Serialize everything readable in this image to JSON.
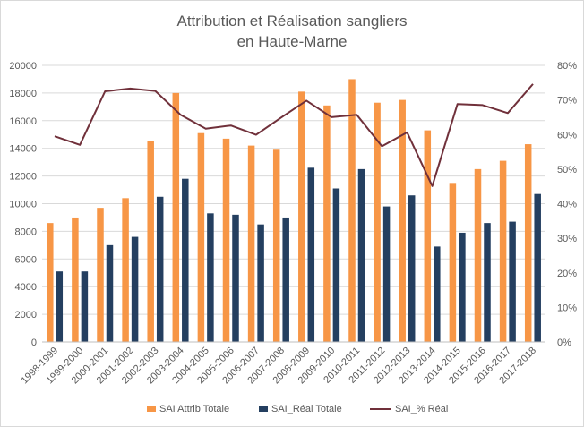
{
  "chart_data": {
    "type": "bar",
    "title_lines": [
      "Attribution et Réalisation sangliers",
      "en Haute-Marne"
    ],
    "categories": [
      "1998-1999",
      "1999-2000",
      "2000-2001",
      "2001-2002",
      "2002-2003",
      "2003-2004",
      "2004-2005",
      "2005-2006",
      "2006-2007",
      "2007-2008",
      "2008-2009",
      "2009-2010",
      "2010-2011",
      "2011-2012",
      "2012-2013",
      "2013-2014",
      "2014-2015",
      "2015-2016",
      "2016-2017",
      "2017-2018"
    ],
    "series": [
      {
        "name": "SAI Attrib Totale",
        "type": "bar",
        "axis": "left",
        "color": "#f79646",
        "values": [
          8600,
          9000,
          9700,
          10400,
          14500,
          18000,
          15100,
          14700,
          14200,
          13900,
          18100,
          17100,
          19000,
          17300,
          17500,
          15300,
          11500,
          12500,
          13100,
          14300
        ]
      },
      {
        "name": "SAI_Réal Totale",
        "type": "bar",
        "axis": "left",
        "color": "#243f60",
        "values": [
          5100,
          5100,
          7000,
          7600,
          10500,
          11800,
          9300,
          9200,
          8500,
          9000,
          12600,
          11100,
          12500,
          9800,
          10600,
          6900,
          7900,
          8600,
          8700,
          10700
        ]
      },
      {
        "name": "SAI_% Réal",
        "type": "line",
        "axis": "right",
        "color": "#70303a",
        "values": [
          59.5,
          57,
          72.5,
          73.3,
          72.6,
          65.7,
          61.7,
          62.6,
          59.9,
          64.9,
          69.8,
          65,
          65.7,
          56.6,
          60.6,
          45.1,
          68.8,
          68.5,
          66.2,
          74.6
        ]
      }
    ],
    "y_left": {
      "min": 0,
      "max": 20000,
      "step": 2000,
      "ticks": [
        "0",
        "2000",
        "4000",
        "6000",
        "8000",
        "10000",
        "12000",
        "14000",
        "16000",
        "18000",
        "20000"
      ]
    },
    "y_right": {
      "min": 0,
      "max": 80,
      "step": 10,
      "ticks": [
        "0%",
        "10%",
        "20%",
        "30%",
        "40%",
        "50%",
        "60%",
        "70%",
        "80%"
      ]
    },
    "gridlines": true,
    "legend_position": "bottom"
  }
}
